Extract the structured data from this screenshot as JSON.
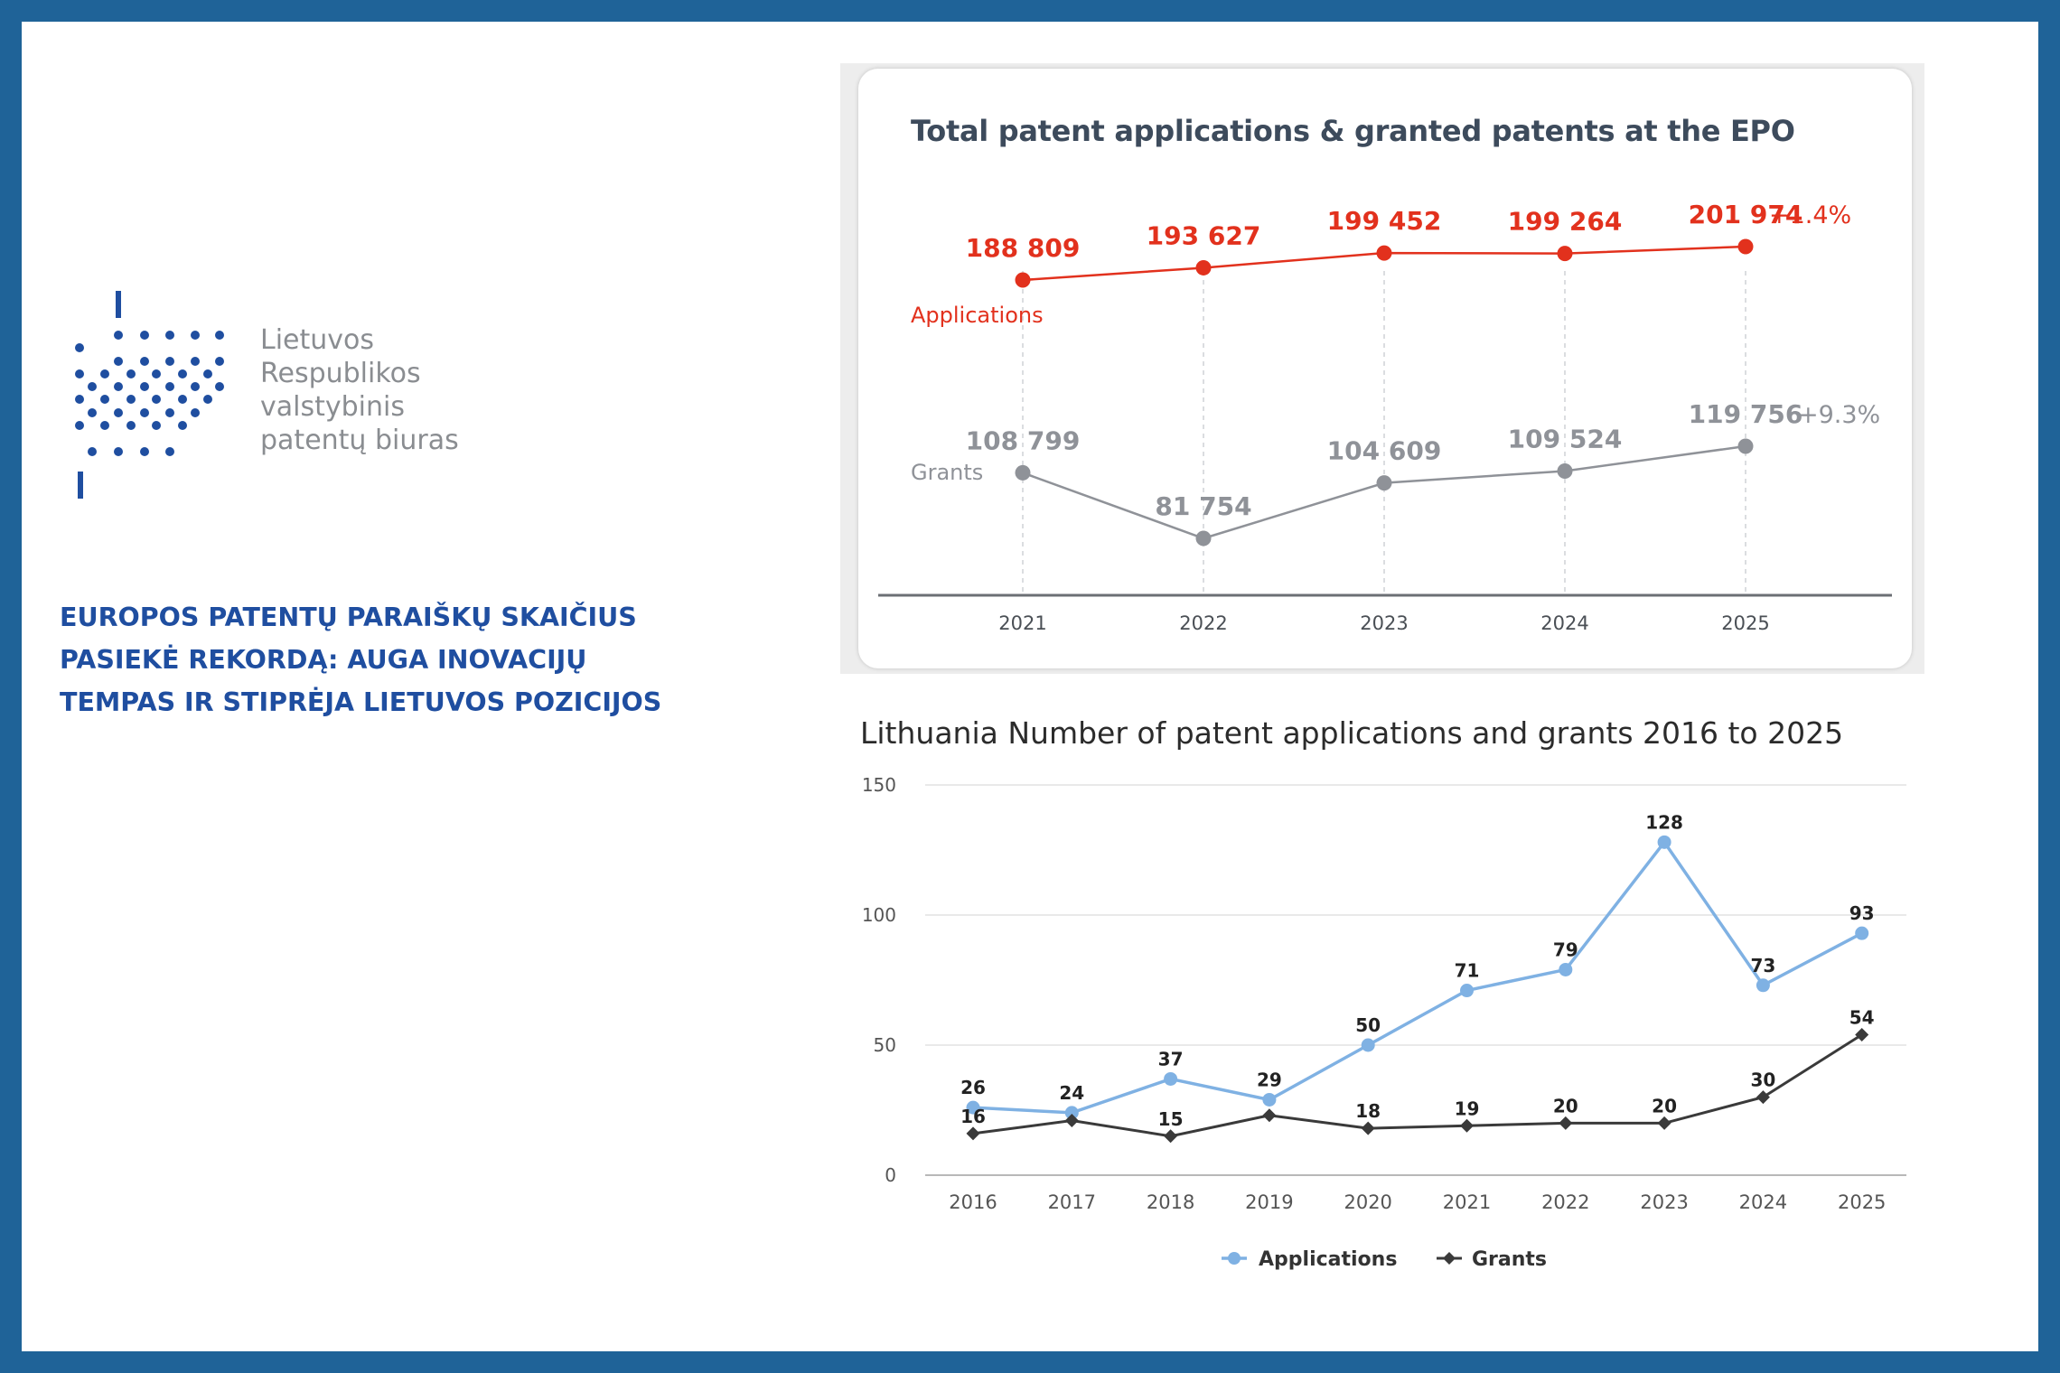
{
  "logo": {
    "lines": [
      "Lietuvos",
      "Respublikos",
      "valstybinis",
      "patentų biuras"
    ],
    "color": "#8a8d91",
    "mark_color": "#1f4ea0"
  },
  "headline": {
    "lines": [
      "EUROPOS PATENTŲ PARAIŠKŲ SKAIČIUS",
      "PASIEKĖ REKORDĄ: AUGA INOVACIJŲ",
      "TEMPAS IR STIPRĖJA LIETUVOS POZICIJOS"
    ],
    "color": "#1f4ea0"
  },
  "colors": {
    "border": "#1f6398",
    "epo_red": "#e2311d",
    "epo_grey": "#8f9298",
    "lt_apps": "#7fb1e3",
    "lt_grants": "#3a3a3a"
  },
  "chart_data": [
    {
      "type": "line",
      "title": "Total patent applications & granted patents at the EPO",
      "x": [
        "2021",
        "2022",
        "2023",
        "2024",
        "2025"
      ],
      "series": [
        {
          "name": "Applications",
          "values": [
            188809,
            193627,
            199452,
            199264,
            201974
          ],
          "labels": [
            "188 809",
            "193 627",
            "199 452",
            "199 264",
            "201 974"
          ],
          "change": "+1.4%",
          "color": "#e2311d"
        },
        {
          "name": "Grants",
          "values": [
            108799,
            81754,
            104609,
            109524,
            119756
          ],
          "labels": [
            "108 799",
            "81 754",
            "104 609",
            "109 524",
            "119 756"
          ],
          "change": "+9.3%",
          "color": "#8f9298"
        }
      ],
      "grid": false,
      "legend": "inline labels"
    },
    {
      "type": "line",
      "title": "Lithuania Number of patent applications and grants 2016 to 2025",
      "x": [
        "2016",
        "2017",
        "2018",
        "2019",
        "2020",
        "2021",
        "2022",
        "2023",
        "2024",
        "2025"
      ],
      "yticks": [
        "0",
        "50",
        "100",
        "150"
      ],
      "ylim": [
        0,
        150
      ],
      "series": [
        {
          "name": "Applications",
          "values": [
            26,
            24,
            37,
            29,
            50,
            71,
            79,
            128,
            73,
            93
          ],
          "color": "#7fb1e3",
          "marker": "circle"
        },
        {
          "name": "Grants",
          "values": [
            16,
            21,
            15,
            23,
            18,
            19,
            20,
            20,
            30,
            54
          ],
          "labels": [
            "16",
            "",
            "15",
            "",
            "18",
            "19",
            "20",
            "20",
            "30",
            "54"
          ],
          "color": "#3a3a3a",
          "marker": "diamond"
        }
      ],
      "grid": true,
      "legend": "bottom-center"
    }
  ]
}
